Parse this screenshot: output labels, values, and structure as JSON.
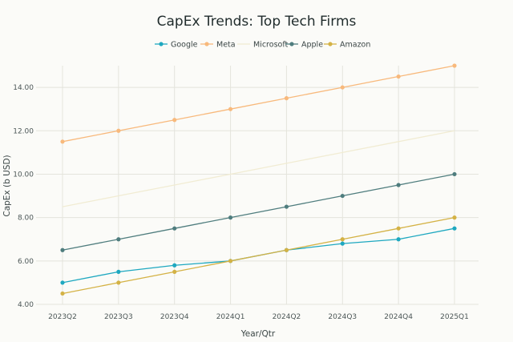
{
  "chart_data": {
    "type": "line",
    "title": "CapEx Trends: Top Tech Firms",
    "xlabel": "Year/Qtr",
    "ylabel": "CapEx (b USD)",
    "categories": [
      "2023Q2",
      "2023Q3",
      "2023Q4",
      "2024Q1",
      "2024Q2",
      "2024Q3",
      "2024Q4",
      "2025Q1"
    ],
    "ylim": [
      4.0,
      15.0
    ],
    "yticks": [
      "4.00",
      "6.00",
      "8.00",
      "10.00",
      "12.00",
      "14.00"
    ],
    "ytick_values": [
      4,
      6,
      8,
      10,
      12,
      14
    ],
    "grid": true,
    "legend_position": "top",
    "series": [
      {
        "name": "Google",
        "color": "#1ea8c0",
        "values": [
          5.0,
          5.5,
          5.8,
          6.0,
          6.5,
          6.8,
          7.0,
          7.5
        ],
        "markers": true
      },
      {
        "name": "Meta",
        "color": "#f8b97c",
        "values": [
          11.5,
          12.0,
          12.5,
          13.0,
          13.5,
          14.0,
          14.5,
          15.0
        ],
        "markers": true
      },
      {
        "name": "Microsoft",
        "color": "#f1ecd3",
        "values": [
          8.5,
          9.0,
          9.5,
          10.0,
          10.5,
          11.0,
          11.5,
          12.0
        ],
        "markers": false
      },
      {
        "name": "Apple",
        "color": "#4f7d7e",
        "values": [
          6.5,
          7.0,
          7.5,
          8.0,
          8.5,
          9.0,
          9.5,
          10.0
        ],
        "markers": true
      },
      {
        "name": "Amazon",
        "color": "#d4b245",
        "values": [
          4.5,
          5.0,
          5.5,
          6.0,
          6.5,
          7.0,
          7.5,
          8.0
        ],
        "markers": true
      }
    ]
  }
}
